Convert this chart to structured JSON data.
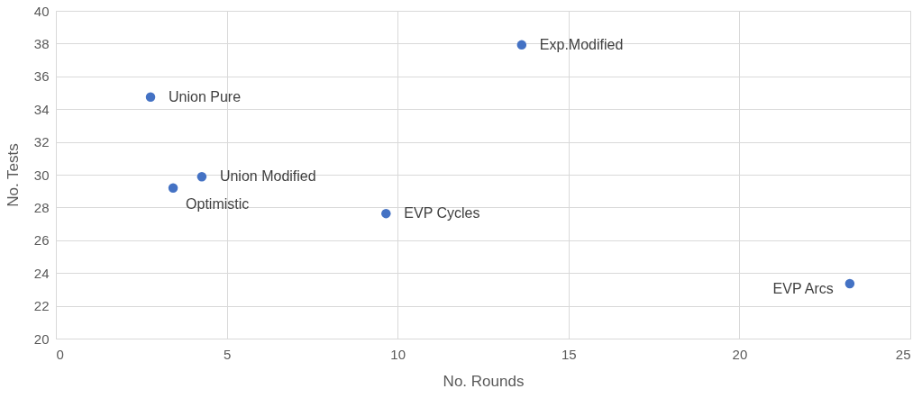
{
  "chart_data": {
    "type": "scatter",
    "xlabel": "No. Rounds",
    "ylabel": "No. Tests",
    "x": [
      2.77,
      13.63,
      4.27,
      3.43,
      9.66,
      23.23
    ],
    "series": [
      {
        "color": "#4472c4",
        "values": [
          34.74,
          37.92,
          29.88,
          29.19,
          27.63,
          23.35
        ]
      }
    ],
    "annotations": [
      {
        "text": "Union Pure",
        "x": 2.77,
        "y": 34.74
      },
      {
        "text": "Exp.Modified",
        "x": 13.63,
        "y": 37.92
      },
      {
        "text": "Union Modified",
        "x": 4.27,
        "y": 29.88
      },
      {
        "text": "Optimistic",
        "x": 3.43,
        "y": 29.19
      },
      {
        "text": "EVP Cycles",
        "x": 9.66,
        "y": 27.63
      },
      {
        "text": "EVP Arcs",
        "x": 23.23,
        "y": 23.35
      }
    ],
    "xlim": [
      0,
      25
    ],
    "xticks": [
      0,
      5,
      10,
      15,
      20,
      25
    ],
    "ylim": [
      20,
      40
    ],
    "yticks": [
      20,
      22,
      24,
      26,
      28,
      30,
      32,
      34,
      36,
      38,
      40
    ],
    "grid": true,
    "marker": "circle",
    "legend": false
  }
}
